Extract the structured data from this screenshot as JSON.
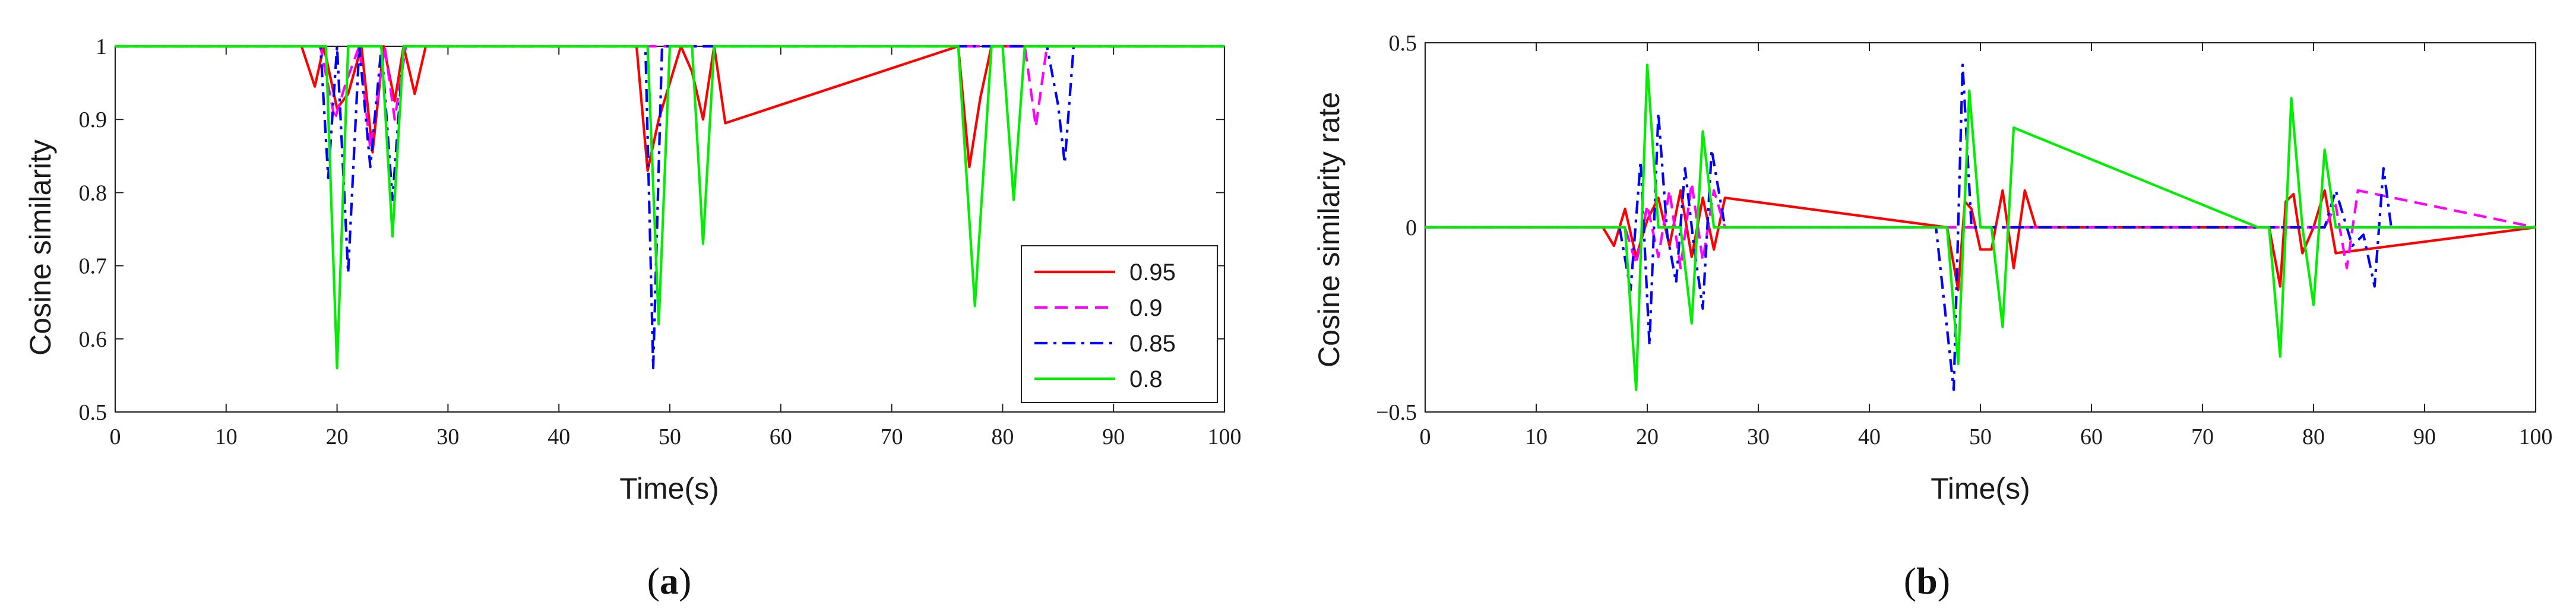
{
  "chart_data": [
    {
      "type": "line",
      "panel": "a",
      "caption": {
        "open": "(",
        "letter": "a",
        "close": ")"
      },
      "xlabel": "Time(s)",
      "ylabel": "Cosine similarity",
      "xlim": [
        0,
        100
      ],
      "ylim": [
        0.5,
        1
      ],
      "xticks": [
        0,
        10,
        20,
        30,
        40,
        50,
        60,
        70,
        80,
        90,
        100
      ],
      "yticks": [
        0.5,
        0.6,
        0.7,
        0.8,
        0.9,
        1
      ],
      "ytick_labels": [
        "0.5",
        "0.6",
        "0.7",
        "0.8",
        "0.9",
        "1"
      ],
      "legend": {
        "placement": "lower-right",
        "entries": [
          "0.95",
          "0.9",
          "0.85",
          "0.8"
        ]
      },
      "series": [
        {
          "name": "0.95",
          "color": "#ff0000",
          "style": "solid",
          "x": [
            0,
            16.8,
            18,
            18.8,
            20,
            21,
            22.2,
            23.2,
            24.2,
            25.2,
            26,
            27,
            28,
            47,
            48,
            49,
            50,
            51,
            52,
            53,
            54,
            55,
            76,
            77,
            78,
            79,
            80,
            100
          ],
          "y": [
            1,
            1,
            0.945,
            1,
            0.915,
            0.935,
            1,
            0.855,
            1,
            0.925,
            1,
            0.935,
            1,
            1,
            0.83,
            0.9,
            0.95,
            1,
            0.965,
            0.9,
            1,
            0.895,
            1,
            0.835,
            0.93,
            1,
            1,
            1
          ]
        },
        {
          "name": "0.9",
          "color": "#ff00ff",
          "style": "dashed",
          "x": [
            0,
            18.5,
            19.8,
            20.8,
            22,
            23,
            24.3,
            25.2,
            26.2,
            27,
            82,
            83,
            84,
            100
          ],
          "y": [
            1,
            1,
            0.9,
            0.95,
            1,
            0.86,
            1,
            0.9,
            1,
            1,
            1,
            0.89,
            1,
            1
          ]
        },
        {
          "name": "0.85",
          "color": "#0000ff",
          "style": "dashdot",
          "x": [
            0,
            18.5,
            19.2,
            20,
            21,
            22,
            23,
            24,
            25,
            26,
            27,
            47.8,
            48.5,
            49.3,
            50,
            84,
            85,
            85.6,
            86.4,
            87,
            100
          ],
          "y": [
            1,
            1,
            0.82,
            1,
            0.69,
            1,
            0.835,
            1,
            0.79,
            1,
            1,
            1,
            0.56,
            1,
            1,
            1,
            0.92,
            0.84,
            1,
            1,
            1
          ]
        },
        {
          "name": "0.8",
          "color": "#00ee00",
          "style": "solid",
          "x": [
            0,
            19,
            20,
            21,
            24,
            25,
            26,
            48,
            49,
            50,
            52,
            53,
            54,
            76,
            77.5,
            79,
            80,
            81,
            82,
            100
          ],
          "y": [
            1,
            1,
            0.56,
            1,
            1,
            0.74,
            1,
            1,
            0.62,
            1,
            1,
            0.73,
            1,
            1,
            0.645,
            1,
            1,
            0.79,
            1,
            1
          ]
        }
      ]
    },
    {
      "type": "line",
      "panel": "b",
      "caption": {
        "open": "(",
        "letter": "b",
        "close": ")"
      },
      "xlabel": "Time(s)",
      "ylabel": "Cosine similarity rate",
      "xlim": [
        0,
        100
      ],
      "ylim": [
        -0.5,
        0.5
      ],
      "xticks": [
        0,
        10,
        20,
        30,
        40,
        50,
        60,
        70,
        80,
        90,
        100
      ],
      "yticks": [
        -0.5,
        0,
        0.5
      ],
      "ytick_labels": [
        "−0.5",
        "0",
        "0.5"
      ],
      "series": [
        {
          "name": "0.95",
          "color": "#ff0000",
          "style": "solid",
          "x": [
            0,
            16,
            17,
            18,
            19,
            20,
            21,
            22,
            23,
            24,
            25,
            26,
            27,
            47,
            48,
            48.6,
            49.2,
            50,
            51,
            52,
            53,
            54,
            55,
            76,
            77,
            77.5,
            78.2,
            79,
            80,
            81,
            82,
            100
          ],
          "y": [
            0,
            0,
            -0.05,
            0.05,
            -0.08,
            0.02,
            0.08,
            -0.05,
            0.1,
            -0.08,
            0.08,
            -0.06,
            0.08,
            0,
            -0.17,
            0.07,
            0.05,
            -0.06,
            -0.06,
            0.1,
            -0.11,
            0.1,
            0,
            0,
            -0.16,
            0.07,
            0.09,
            -0.07,
            0,
            0.1,
            -0.07,
            0
          ]
        },
        {
          "name": "0.9",
          "color": "#ff00ff",
          "style": "dashed",
          "x": [
            0,
            18,
            19,
            20,
            21,
            22,
            23,
            24,
            25,
            26,
            27,
            81,
            82,
            83,
            84,
            100
          ],
          "y": [
            0,
            0,
            -0.1,
            0.06,
            -0.08,
            0.1,
            -0.11,
            0.12,
            -0.09,
            0.1,
            0,
            0,
            0.06,
            -0.11,
            0.1,
            0
          ]
        },
        {
          "name": "0.85",
          "color": "#0000ff",
          "style": "dashdot",
          "x": [
            0,
            17.5,
            18.5,
            19.4,
            20.2,
            21,
            21.8,
            22.6,
            23.4,
            24.2,
            25,
            25.8,
            27,
            46,
            47.6,
            48.4,
            49.2,
            50,
            81,
            82,
            83.5,
            84.5,
            85.5,
            86.3,
            87,
            100
          ],
          "y": [
            0,
            0,
            -0.17,
            0.18,
            -0.32,
            0.31,
            -0.02,
            -0.15,
            0.16,
            -0.05,
            -0.22,
            0.21,
            0,
            0,
            -0.44,
            0.44,
            0,
            0,
            0,
            0.1,
            -0.05,
            -0.02,
            -0.16,
            0.16,
            0,
            0
          ]
        },
        {
          "name": "0.8",
          "color": "#00ee00",
          "style": "solid",
          "x": [
            0,
            18,
            19,
            20,
            21,
            23,
            24,
            25,
            26,
            47,
            48,
            49,
            50,
            51,
            52,
            53,
            75,
            76,
            77,
            78,
            79,
            80,
            81,
            82,
            100
          ],
          "y": [
            0,
            0,
            -0.44,
            0.44,
            0,
            0,
            -0.26,
            0.26,
            0,
            0,
            -0.37,
            0.37,
            0,
            0,
            -0.27,
            0.27,
            0,
            0,
            -0.35,
            0.35,
            0,
            -0.21,
            0.21,
            0,
            0
          ]
        }
      ]
    }
  ]
}
